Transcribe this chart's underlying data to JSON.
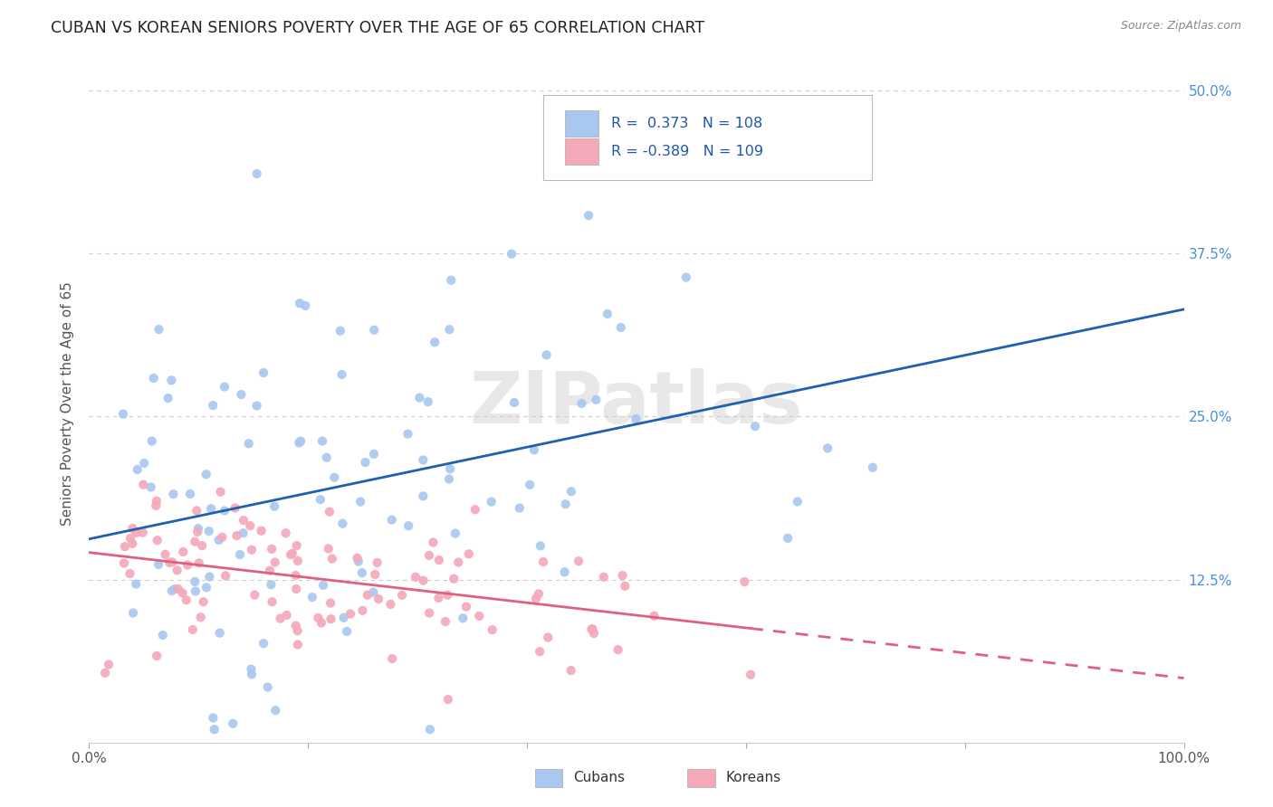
{
  "title": "CUBAN VS KOREAN SENIORS POVERTY OVER THE AGE OF 65 CORRELATION CHART",
  "source": "Source: ZipAtlas.com",
  "ylabel": "Seniors Poverty Over the Age of 65",
  "watermark": "ZIPatlas",
  "cubans": {
    "R": 0.373,
    "N": 108,
    "color": "#A8C8F0",
    "line_color": "#2060B0",
    "label": "Cubans"
  },
  "koreans": {
    "R": -0.389,
    "N": 109,
    "color": "#F4A8B8",
    "line_color": "#E06080",
    "label": "Koreans"
  },
  "xlim": [
    0.0,
    1.0
  ],
  "ylim": [
    0.0,
    0.52
  ],
  "yticks": [
    0.0,
    0.125,
    0.25,
    0.375,
    0.5
  ],
  "yticklabels_right": [
    "",
    "12.5%",
    "25.0%",
    "37.5%",
    "50.0%"
  ],
  "xtick_left": "0.0%",
  "xtick_right": "100.0%",
  "background_color": "#FFFFFF",
  "grid_color": "#CCCCCC",
  "title_fontsize": 12.5,
  "right_ytick_color": "#4A90D9",
  "legend_R_N_color": "#2255AA"
}
